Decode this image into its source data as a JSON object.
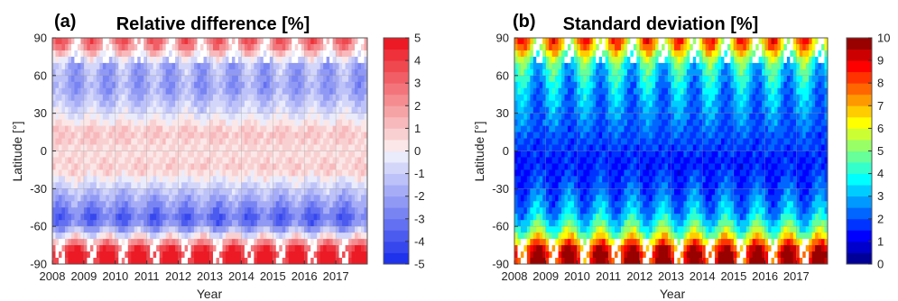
{
  "chart_data": [
    {
      "type": "heatmap",
      "panel_label": "(a)",
      "title": "Relative difference [%]",
      "xlabel": "Year",
      "ylabel": "Latitude [°]",
      "xlim": [
        2008,
        2018
      ],
      "ylim": [
        -90,
        90
      ],
      "x_ticks": [
        "2008",
        "2009",
        "2010",
        "2011",
        "2012",
        "2013",
        "2014",
        "2015",
        "2016",
        "2017"
      ],
      "y_ticks": [
        "90",
        "60",
        "30",
        "0",
        "-30",
        "-60",
        "-90"
      ],
      "colorbar": {
        "min": -5,
        "max": 5,
        "ticks": [
          "5",
          "4",
          "3",
          "2",
          "1",
          "0",
          "-1",
          "-2",
          "-3",
          "-4",
          "-5"
        ],
        "colormap": "blue-white-red"
      },
      "latitude_profile_mean": [
        {
          "lat": 85,
          "value": 2.5
        },
        {
          "lat": 70,
          "value": -1.5
        },
        {
          "lat": 50,
          "value": -2.0
        },
        {
          "lat": 30,
          "value": -0.5
        },
        {
          "lat": 15,
          "value": 1.0
        },
        {
          "lat": 0,
          "value": 0.5
        },
        {
          "lat": -15,
          "value": 0.8
        },
        {
          "lat": -30,
          "value": -1.0
        },
        {
          "lat": -45,
          "value": -2.5
        },
        {
          "lat": -55,
          "value": -3.5
        },
        {
          "lat": -65,
          "value": -1.0
        },
        {
          "lat": -80,
          "value": 4.5
        }
      ]
    },
    {
      "type": "heatmap",
      "panel_label": "(b)",
      "title": "Standard deviation [%]",
      "xlabel": "Year",
      "ylabel": "Latitude [°]",
      "xlim": [
        2008,
        2018
      ],
      "ylim": [
        -90,
        90
      ],
      "x_ticks": [
        "2008",
        "2009",
        "2010",
        "2011",
        "2012",
        "2013",
        "2014",
        "2015",
        "2016",
        "2017"
      ],
      "y_ticks": [
        "90",
        "60",
        "30",
        "0",
        "-30",
        "-60",
        "-90"
      ],
      "colorbar": {
        "min": 0,
        "max": 10,
        "ticks": [
          "10",
          "9",
          "8",
          "7",
          "6",
          "5",
          "4",
          "3",
          "2",
          "1",
          "0"
        ],
        "colormap": "jet"
      },
      "latitude_profile_mean": [
        {
          "lat": 85,
          "value": 7.0
        },
        {
          "lat": 70,
          "value": 4.0
        },
        {
          "lat": 50,
          "value": 3.0
        },
        {
          "lat": 30,
          "value": 2.5
        },
        {
          "lat": 10,
          "value": 2.0
        },
        {
          "lat": -10,
          "value": 1.5
        },
        {
          "lat": -30,
          "value": 2.0
        },
        {
          "lat": -50,
          "value": 3.0
        },
        {
          "lat": -65,
          "value": 5.0
        },
        {
          "lat": -80,
          "value": 9.0
        }
      ]
    }
  ]
}
